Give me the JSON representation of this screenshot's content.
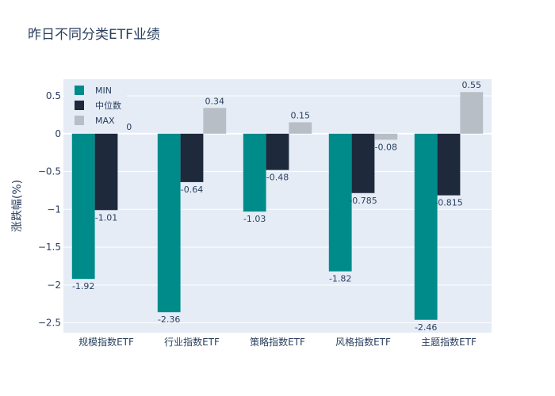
{
  "chart_data": {
    "type": "bar",
    "title": "昨日不同分类ETF业绩",
    "xlabel": "",
    "ylabel": "涨跌幅(%)",
    "categories": [
      "规模指数ETF",
      "行业指数ETF",
      "策略指数ETF",
      "风格指数ETF",
      "主题指数ETF"
    ],
    "series": [
      {
        "name": "MIN",
        "color": "#008b8b",
        "values": [
          -1.92,
          -2.36,
          -1.03,
          -1.82,
          -2.46
        ],
        "labels": [
          "-1.92",
          "-2.36",
          "-1.03",
          "-1.82",
          "-2.46"
        ]
      },
      {
        "name": "中位数",
        "color": "#1e293b",
        "values": [
          -1.01,
          -0.64,
          -0.48,
          -0.785,
          -0.815
        ],
        "labels": [
          "-1.01",
          "-0.64",
          "-0.48",
          "-0.785",
          "-0.815"
        ]
      },
      {
        "name": "MAX",
        "color": "#b8bec6",
        "values": [
          0,
          0.34,
          0.15,
          -0.08,
          0.55
        ],
        "labels": [
          "0",
          "0.34",
          "0.15",
          "-0.08",
          "0.55"
        ]
      }
    ],
    "ylim": [
      -2.63,
      0.72
    ],
    "yticks": [
      0.5,
      0,
      -0.5,
      -1,
      -1.5,
      -2,
      -2.5
    ],
    "ytick_labels": [
      "0.5",
      "0",
      "−0.5",
      "−1",
      "−1.5",
      "−2",
      "−2.5"
    ],
    "grid": true,
    "legend_position": "top-left",
    "plot_bg": "#e5ecf6"
  }
}
